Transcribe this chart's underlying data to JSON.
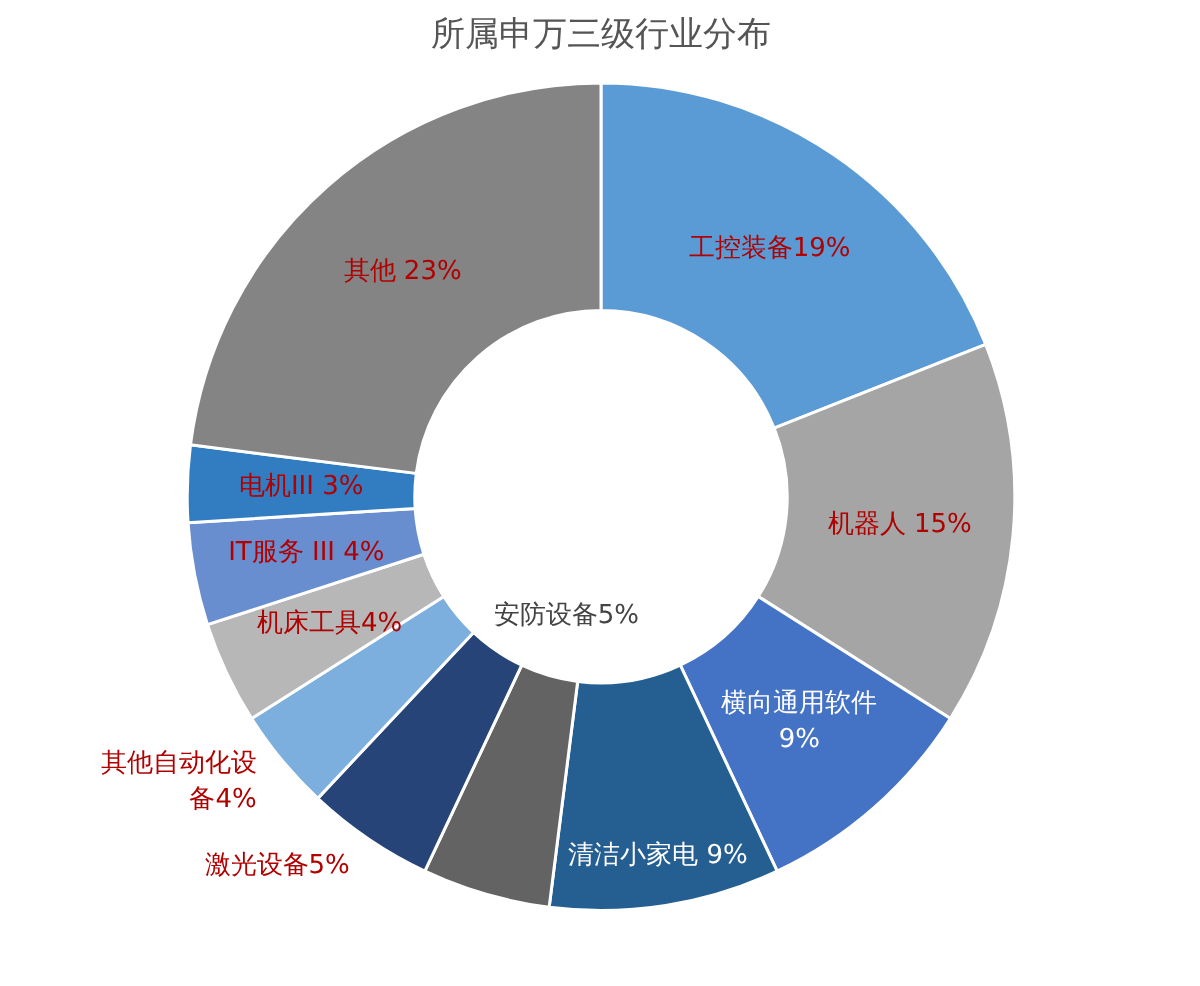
{
  "chart_data": {
    "type": "donut",
    "title": "所属申万三级行业分布",
    "categories": [
      "工控装备19%",
      "机器人 15%",
      "横向通用软件\n9%",
      "清洁小家电 9%",
      "安防设备5%",
      "激光设备5%",
      "其他自动化设备4%",
      "机床工具4%",
      "IT服务 III 4%",
      "电机III 3%",
      "其他 23%"
    ],
    "values": [
      19,
      15,
      9,
      9,
      5,
      5,
      4,
      4,
      4,
      3,
      23
    ],
    "colors": [
      "#5b9bd5",
      "#a5a5a5",
      "#4472c4",
      "#255e91",
      "#636363",
      "#264478",
      "#7cafdd",
      "#b7b7b7",
      "#698ed0",
      "#327dc2",
      "#848484"
    ],
    "legend": false
  }
}
